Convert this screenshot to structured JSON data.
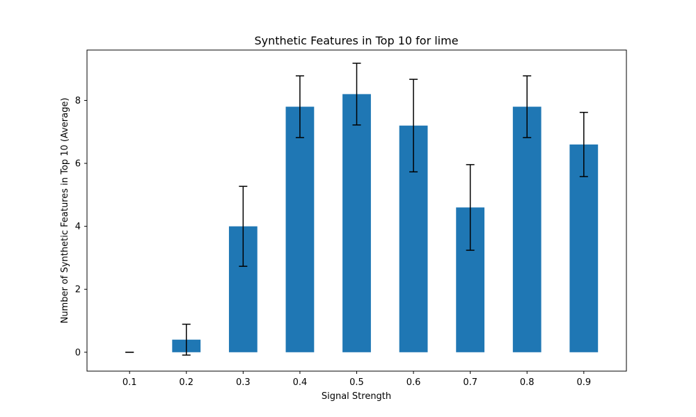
{
  "chart_data": {
    "type": "bar",
    "title": "Synthetic Features in Top 10 for lime",
    "xlabel": "Signal Strength",
    "ylabel": "Number of Synthetic Features in Top 10 (Average)",
    "categories": [
      "0.1",
      "0.2",
      "0.3",
      "0.4",
      "0.5",
      "0.6",
      "0.7",
      "0.8",
      "0.9"
    ],
    "series": [
      {
        "values": [
          0.0,
          0.4,
          4.0,
          7.8,
          8.2,
          7.2,
          4.6,
          7.8,
          6.6
        ],
        "errors": [
          0.0,
          0.49,
          1.27,
          0.98,
          0.98,
          1.47,
          1.36,
          0.98,
          1.02
        ],
        "color": "#1f77b4"
      }
    ],
    "ylim": [
      -0.6,
      9.6
    ],
    "yticks": [
      0,
      2,
      4,
      6,
      8
    ],
    "grid": false,
    "error_bar_color": "#000000"
  }
}
